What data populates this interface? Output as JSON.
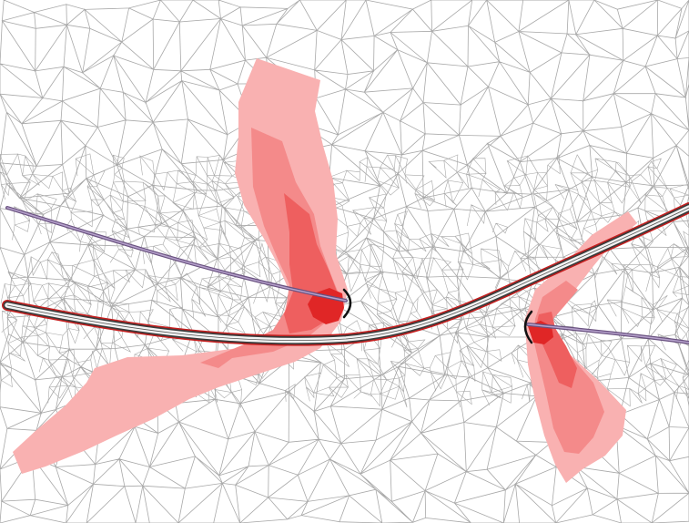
{
  "colors": {
    "background": "#ffffff",
    "mesh_line": "#9a9a9a",
    "plume_light": "#f9b1b1",
    "plume_mid": "#f48a8a",
    "plume_strong": "#ee5f5f",
    "plume_core": "#e02626",
    "road_outer": "#c41e1e",
    "road_inner": "#3b3b3b",
    "road_fill": "#f2f2f2",
    "pipeline": "#8a6fa8",
    "outfall_marker": "#111111"
  },
  "icons": {
    "left_outfall": "bracket-marker-icon",
    "right_outfall": "bracket-marker-icon"
  }
}
